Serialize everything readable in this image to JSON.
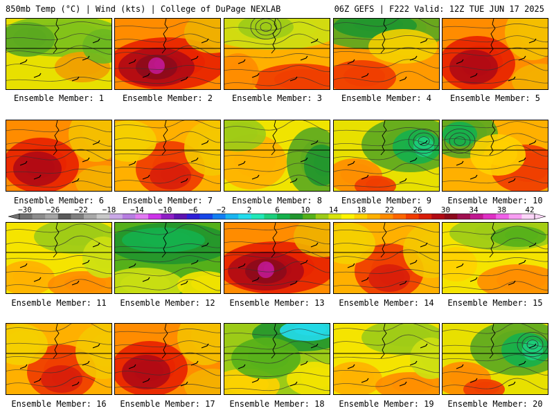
{
  "header": {
    "left": "850mb Temp (°C) | Wind (kts) | College of DuPage NEXLAB",
    "right": "06Z GEFS | F222 Valid: 12Z TUE JUN 17 2025"
  },
  "panels": [
    {
      "label": "Ensemble Member: 1",
      "theme": "green-mild"
    },
    {
      "label": "Ensemble Member: 2",
      "theme": "very-hot"
    },
    {
      "label": "Ensemble Member: 3",
      "theme": "cool-north-low"
    },
    {
      "label": "Ensemble Member: 4",
      "theme": "green-north-hot-south"
    },
    {
      "label": "Ensemble Member: 5",
      "theme": "hot-west"
    },
    {
      "label": "Ensemble Member: 6",
      "theme": "hot-west"
    },
    {
      "label": "Ensemble Member: 7",
      "theme": "warm-orange"
    },
    {
      "label": "Ensemble Member: 8",
      "theme": "yellow-green-east"
    },
    {
      "label": "Ensemble Member: 9",
      "theme": "green-east-low"
    },
    {
      "label": "Ensemble Member: 10",
      "theme": "green-west-low"
    },
    {
      "label": "Ensemble Member: 11",
      "theme": "yellow-mild"
    },
    {
      "label": "Ensemble Member: 12",
      "theme": "green-cool"
    },
    {
      "label": "Ensemble Member: 13",
      "theme": "very-hot"
    },
    {
      "label": "Ensemble Member: 14",
      "theme": "warm-orange"
    },
    {
      "label": "Ensemble Member: 15",
      "theme": "yellow-green-north"
    },
    {
      "label": "Ensemble Member: 16",
      "theme": "warm-orange"
    },
    {
      "label": "Ensemble Member: 17",
      "theme": "hot-west"
    },
    {
      "label": "Ensemble Member: 18",
      "theme": "cyan-north"
    },
    {
      "label": "Ensemble Member: 19",
      "theme": "yellow-mild"
    },
    {
      "label": "Ensemble Member: 20",
      "theme": "green-east-low"
    }
  ],
  "colorbar": {
    "labels": [
      "−30",
      "−26",
      "−22",
      "−18",
      "−14",
      "−10",
      "−6",
      "−2",
      "2",
      "6",
      "10",
      "14",
      "18",
      "22",
      "26",
      "30",
      "34",
      "38",
      "42"
    ],
    "colors": [
      "#707070",
      "#8c8c8c",
      "#a5a5a5",
      "#5a5a5a",
      "#7f7f7f",
      "#a8a8a8",
      "#c8c8c8",
      "#c9a8e6",
      "#b67de0",
      "#e27bf2",
      "#cc33e8",
      "#8e1fc4",
      "#5d12b0",
      "#2e1ed6",
      "#1646e8",
      "#137ef2",
      "#19b4f0",
      "#23dced",
      "#21e8b7",
      "#1ccf7c",
      "#15b04c",
      "#21962e",
      "#55b01a",
      "#9ccb17",
      "#d8e40c",
      "#fff400",
      "#ffd200",
      "#ffb000",
      "#ff8c00",
      "#fc6600",
      "#f03b00",
      "#d81e0a",
      "#b00a14",
      "#8c0a1c",
      "#a01050",
      "#c01890",
      "#de30c4",
      "#f060e8",
      "#f79ef2",
      "#fcd6f8"
    ]
  }
}
